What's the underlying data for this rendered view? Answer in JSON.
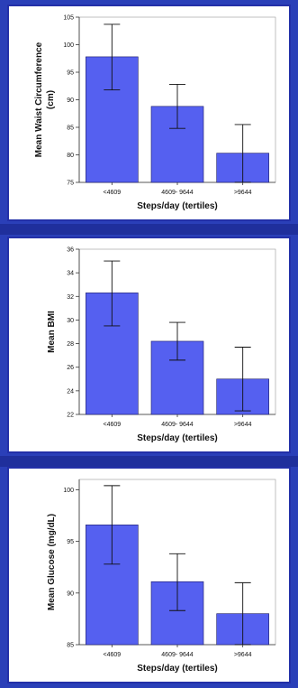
{
  "colors": {
    "background": "#2a3fb8",
    "bar_fill": "#5560f0",
    "panel": "#ffffff"
  },
  "chart_data": [
    {
      "type": "bar",
      "categories": [
        "<4609",
        "4609- 9644",
        ">9644"
      ],
      "values": [
        97.8,
        88.8,
        80.3
      ],
      "error_low": [
        91.8,
        84.8,
        75.0
      ],
      "error_high": [
        103.7,
        92.8,
        85.5
      ],
      "xlabel": "Steps/day (tertiles)",
      "ylabel": "Mean Waist Circumference (cm)",
      "ylabel_lines": [
        "Mean Waist Circumference",
        "(cm)"
      ],
      "ylim": [
        75,
        105
      ],
      "yticks": [
        75,
        80,
        85,
        90,
        95,
        100,
        105
      ],
      "grid": false
    },
    {
      "type": "bar",
      "categories": [
        "<4609",
        "4609- 9644",
        ">9644"
      ],
      "values": [
        32.3,
        28.2,
        25.0
      ],
      "error_low": [
        29.5,
        26.6,
        22.3
      ],
      "error_high": [
        35.0,
        29.8,
        27.7
      ],
      "xlabel": "Steps/day (tertiles)",
      "ylabel": "Mean BMI",
      "ylabel_lines": [
        "Mean BMI"
      ],
      "ylim": [
        22,
        36
      ],
      "yticks": [
        22,
        24,
        26,
        28,
        30,
        32,
        34,
        36
      ],
      "grid": false
    },
    {
      "type": "bar",
      "categories": [
        "<4609",
        "4609- 9644",
        ">9644"
      ],
      "values": [
        96.6,
        91.1,
        88.0
      ],
      "error_low": [
        92.8,
        88.3,
        85.0
      ],
      "error_high": [
        100.4,
        93.8,
        91.0
      ],
      "xlabel": "Steps/day (tertiles)",
      "ylabel": "Mean Glucose (mg/dL)",
      "ylabel_lines": [
        "Mean Glucose (mg/dL)"
      ],
      "ylim": [
        85,
        101
      ],
      "yticks": [
        85,
        90,
        95,
        100
      ],
      "grid": false
    }
  ]
}
